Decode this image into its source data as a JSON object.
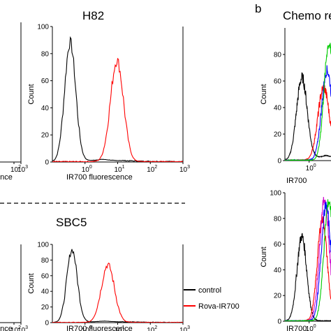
{
  "figure": {
    "panel_b_letter": "b",
    "panel_b_title_visible": "Chemo re",
    "dashed_divider": true
  },
  "colors": {
    "control": "#000000",
    "rova": "#ff0000",
    "green": "#00cc00",
    "blue": "#0000ff",
    "magenta": "#cc00cc"
  },
  "chart_data": [
    {
      "id": "left-top-fragment",
      "type": "line",
      "title": "",
      "xlabel": "ence",
      "ylabel": "",
      "x_scale": "log",
      "xlim": [
        0.1,
        1000
      ],
      "xticks": [
        {
          "base": "10",
          "exp": "2"
        },
        {
          "base": "10",
          "exp": "3"
        }
      ],
      "series": []
    },
    {
      "id": "h82",
      "type": "line",
      "title": "H82",
      "xlabel": "IR700 fluorescence",
      "ylabel": "Count",
      "x_scale": "log",
      "xlim": [
        0.1,
        1000
      ],
      "ylim": [
        0,
        100
      ],
      "yticks": [
        "0",
        "20",
        "40",
        "60",
        "80",
        "100"
      ],
      "xticks": [
        {
          "base": "10",
          "exp": "0"
        },
        {
          "base": "10",
          "exp": "1"
        },
        {
          "base": "10",
          "exp": "2"
        },
        {
          "base": "10",
          "exp": "3"
        }
      ],
      "series": [
        {
          "color": "control",
          "peak_x": 0.35,
          "peak_y": 88,
          "width": 0.17,
          "tail": 2
        },
        {
          "color": "rova",
          "peak_x": 9.5,
          "peak_y": 75,
          "width": 0.2,
          "tail": 0
        }
      ]
    },
    {
      "id": "left-bottom-fragment",
      "type": "line",
      "title": "",
      "xlabel": "ence",
      "ylabel": "",
      "x_scale": "log",
      "xlim": [
        0.1,
        1000
      ],
      "xticks": [
        {
          "base": "10",
          "exp": "2"
        },
        {
          "base": "10",
          "exp": "3"
        }
      ],
      "series": []
    },
    {
      "id": "sbc5",
      "type": "line",
      "title": "SBC5",
      "xlabel": "IR700 fluorescence",
      "ylabel": "Count",
      "x_scale": "log",
      "xlim": [
        0.1,
        1000
      ],
      "ylim": [
        0,
        100
      ],
      "yticks": [
        "0",
        "20",
        "40",
        "60",
        "80",
        "100"
      ],
      "xticks": [
        {
          "base": "10",
          "exp": "0"
        },
        {
          "base": "10",
          "exp": "1"
        },
        {
          "base": "10",
          "exp": "2"
        },
        {
          "base": "10",
          "exp": "3"
        }
      ],
      "legend": [
        {
          "label": "control",
          "color": "control"
        },
        {
          "label": "Rova-IR700",
          "color": "rova"
        }
      ],
      "series": [
        {
          "name": "control",
          "color": "control",
          "peak_x": 0.4,
          "peak_y": 93,
          "width": 0.16,
          "tail": 2
        },
        {
          "name": "Rova-IR700",
          "color": "rova",
          "peak_x": 5.0,
          "peak_y": 74,
          "width": 0.2,
          "tail": 0
        }
      ]
    },
    {
      "id": "chemo-top",
      "type": "line",
      "title": "",
      "xlabel": "IR700",
      "ylabel": "Count",
      "x_scale": "log",
      "xlim": [
        0.1,
        8
      ],
      "ylim": [
        0,
        100
      ],
      "yticks": [
        "0",
        "20",
        "40",
        "60",
        "80"
      ],
      "xticks": [
        {
          "base": "10",
          "exp": "0"
        }
      ],
      "series": [
        {
          "color": "control",
          "peak_x": 0.5,
          "peak_y": 62,
          "width": 0.22,
          "tail": 4
        },
        {
          "color": "rova",
          "peak_x": 4.0,
          "peak_y": 55,
          "width": 0.24,
          "tail": 0
        },
        {
          "color": "blue",
          "peak_x": 5.5,
          "peak_y": 68,
          "width": 0.22,
          "tail": 0
        },
        {
          "color": "green",
          "peak_x": 6.5,
          "peak_y": 88,
          "width": 0.2,
          "tail": 0
        }
      ]
    },
    {
      "id": "chemo-bottom",
      "type": "line",
      "title": "",
      "xlabel": "IR700",
      "ylabel": "Count",
      "x_scale": "log",
      "xlim": [
        0.1,
        8
      ],
      "ylim": [
        0,
        100
      ],
      "yticks": [
        "0",
        "20",
        "40",
        "60",
        "80",
        "100"
      ],
      "xticks": [
        {
          "base": "10",
          "exp": "0"
        }
      ],
      "series": [
        {
          "color": "control",
          "peak_x": 0.5,
          "peak_y": 66,
          "width": 0.2,
          "tail": 0
        },
        {
          "color": "rova",
          "peak_x": 3.5,
          "peak_y": 80,
          "width": 0.2,
          "tail": 0
        },
        {
          "color": "magenta",
          "peak_x": 4.3,
          "peak_y": 95,
          "width": 0.2,
          "tail": 0
        },
        {
          "color": "blue",
          "peak_x": 5.0,
          "peak_y": 90,
          "width": 0.2,
          "tail": 0
        },
        {
          "color": "green",
          "peak_x": 6.5,
          "peak_y": 93,
          "width": 0.2,
          "tail": 0
        }
      ]
    }
  ]
}
